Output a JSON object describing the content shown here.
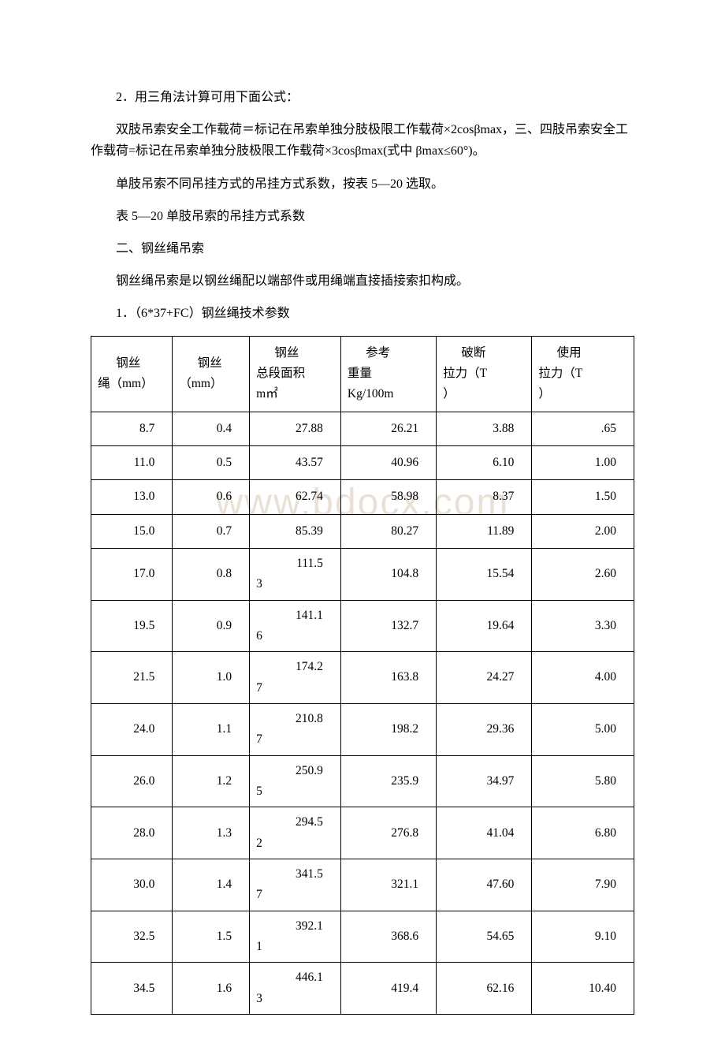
{
  "watermark": "www.bdocx.com",
  "paragraphs": {
    "p1": "2．用三角法计算可用下面公式：",
    "p2": "双肢吊索安全工作载荷＝标记在吊索单独分肢极限工作载荷×2cosβmax，三、四肢吊索安全工作载荷=标记在吊索单独分肢极限工作载荷×3cosβmax(式中 βmax≤60°)。",
    "p3": "单肢吊索不同吊挂方式的吊挂方式系数，按表 5—20 选取。",
    "p4": "表 5—20 单肢吊索的吊挂方式系数",
    "p5": "二、钢丝绳吊索",
    "p6": "钢丝绳吊索是以钢丝绳配以端部件或用绳端直接插接索扣构成。",
    "p7": "1．（6*37+FC）钢丝绳技术参数"
  },
  "table": {
    "headers": [
      {
        "l1": "钢丝",
        "l2": "绳（mm）"
      },
      {
        "l1": "钢丝",
        "l2": "（mm）"
      },
      {
        "l1": "钢丝",
        "l2": "总段面积",
        "l3": "m㎡"
      },
      {
        "l1": "参考",
        "l2": "重量",
        "l3": "Kg/100m"
      },
      {
        "l1": "破断",
        "l2": "拉力（T",
        "l3": "）"
      },
      {
        "l1": "使用",
        "l2": "拉力（T",
        "l3": "）"
      }
    ],
    "rows": [
      {
        "c0": "8.7",
        "c1": "0.4",
        "c2": "27.88",
        "c3": "26.21",
        "c4": "3.88",
        "c5": ".65"
      },
      {
        "c0": "11.0",
        "c1": "0.5",
        "c2": "43.57",
        "c3": "40.96",
        "c4": "6.10",
        "c5": "1.00"
      },
      {
        "c0": "13.0",
        "c1": "0.6",
        "c2": "62.74",
        "c3": "58.98",
        "c4": "8.37",
        "c5": "1.50"
      },
      {
        "c0": "15.0",
        "c1": "0.7",
        "c2": "85.39",
        "c3": "80.27",
        "c4": "11.89",
        "c5": "2.00"
      },
      {
        "c0": "17.0",
        "c1": "0.8",
        "c2t": "111.5",
        "c2b": "3",
        "c3": "104.8",
        "c4": "15.54",
        "c5": "2.60"
      },
      {
        "c0": "19.5",
        "c1": "0.9",
        "c2t": "141.1",
        "c2b": "6",
        "c3": "132.7",
        "c4": "19.64",
        "c5": "3.30"
      },
      {
        "c0": "21.5",
        "c1": "1.0",
        "c2t": "174.2",
        "c2b": "7",
        "c3": "163.8",
        "c4": "24.27",
        "c5": "4.00"
      },
      {
        "c0": "24.0",
        "c1": "1.1",
        "c2t": "210.8",
        "c2b": "7",
        "c3": "198.2",
        "c4": "29.36",
        "c5": "5.00"
      },
      {
        "c0": "26.0",
        "c1": "1.2",
        "c2t": "250.9",
        "c2b": "5",
        "c3": "235.9",
        "c4": "34.97",
        "c5": "5.80"
      },
      {
        "c0": "28.0",
        "c1": "1.3",
        "c2t": "294.5",
        "c2b": "2",
        "c3": "276.8",
        "c4": "41.04",
        "c5": "6.80"
      },
      {
        "c0": "30.0",
        "c1": "1.4",
        "c2t": "341.5",
        "c2b": "7",
        "c3": "321.1",
        "c4": "47.60",
        "c5": "7.90"
      },
      {
        "c0": "32.5",
        "c1": "1.5",
        "c2t": "392.1",
        "c2b": "1",
        "c3": "368.6",
        "c4": "54.65",
        "c5": "9.10"
      },
      {
        "c0": "34.5",
        "c1": "1.6",
        "c2t": "446.1",
        "c2b": "3",
        "c3": "419.4",
        "c4": "62.16",
        "c5": "10.40"
      }
    ]
  }
}
